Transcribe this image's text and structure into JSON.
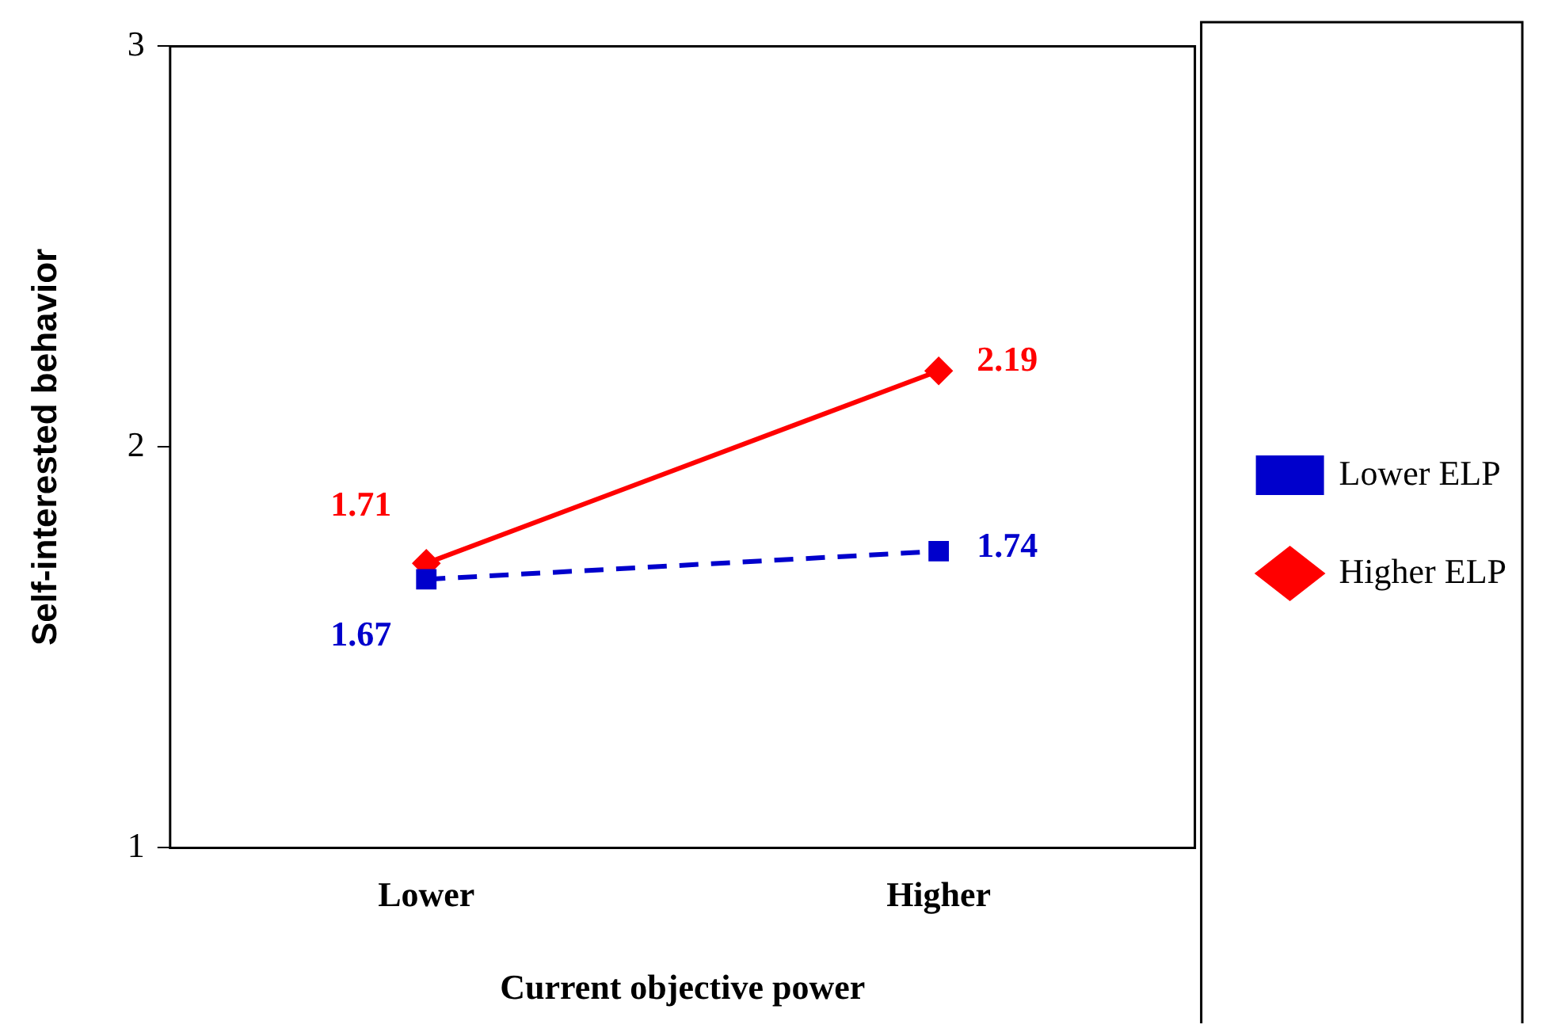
{
  "chart_data": {
    "type": "line",
    "xlabel": "Current objective power",
    "ylabel": "Self-interested behavior",
    "categories": [
      "Lower",
      "Higher"
    ],
    "series": [
      {
        "name": "Lower ELP",
        "color": "#0000cc",
        "values": [
          1.67,
          1.74
        ],
        "marker": "square",
        "line_style": "dashed"
      },
      {
        "name": "Higher ELP",
        "color": "#ff0000",
        "values": [
          1.71,
          2.19
        ],
        "marker": "diamond",
        "line_style": "solid"
      }
    ],
    "ylim": [
      1,
      3
    ],
    "yticks": [
      1,
      2,
      3
    ],
    "grid": false,
    "legend": "right",
    "data_labels": true
  }
}
